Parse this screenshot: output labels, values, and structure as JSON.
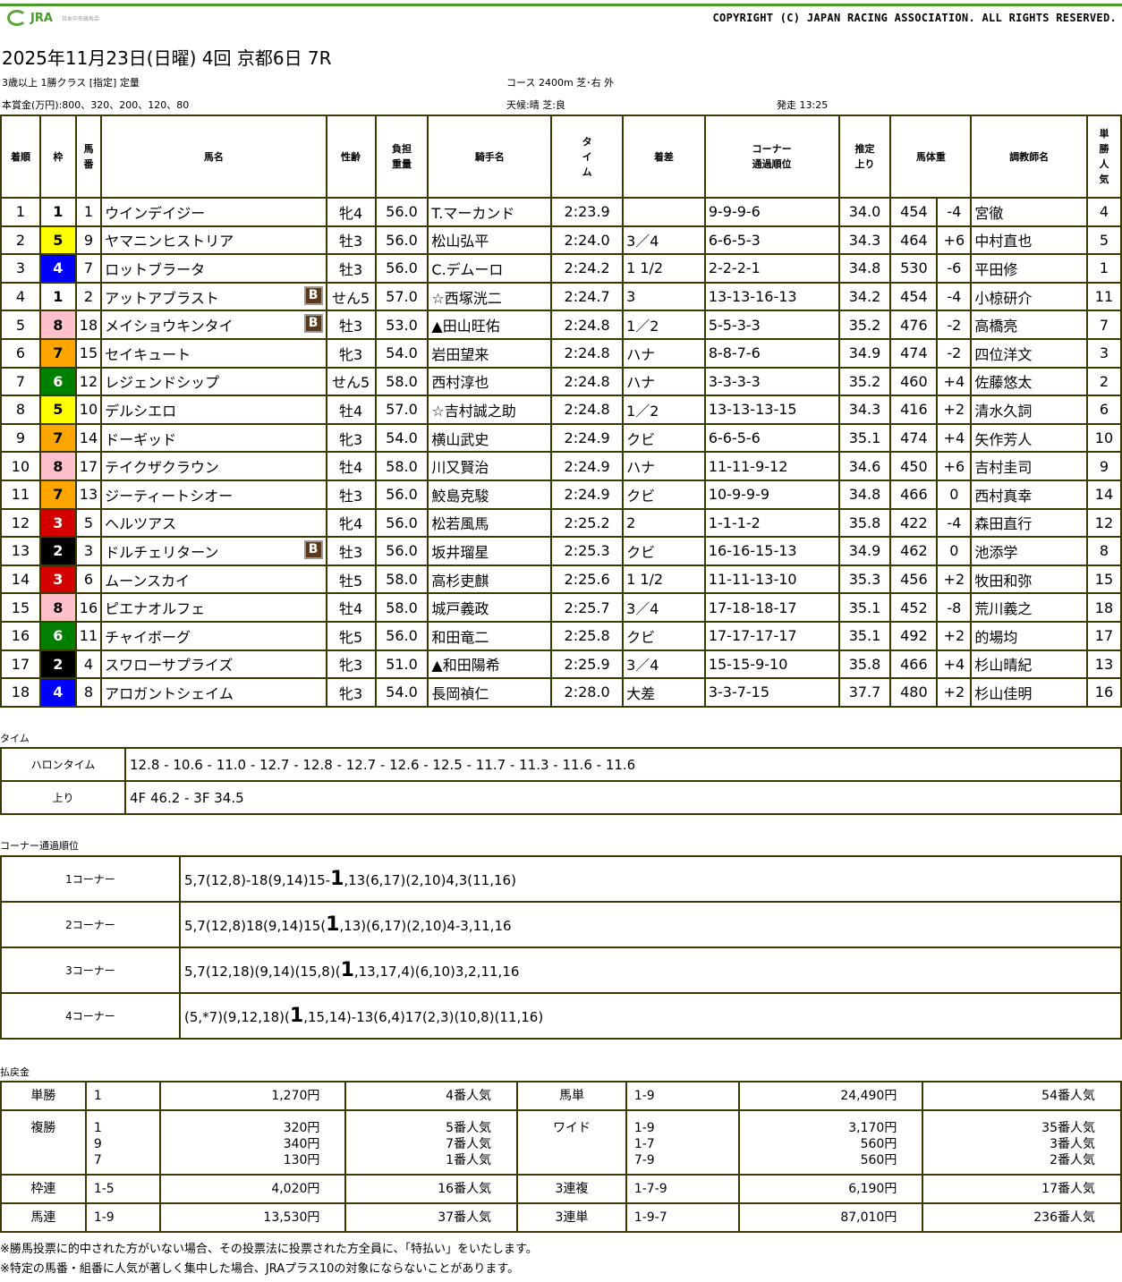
{
  "header": {
    "logo_text": "JRA",
    "logo_subtext": "日本中央競馬会",
    "copyright": "COPYRIGHT (C) JAPAN RACING ASSOCIATION. ALL RIGHTS RESERVED.",
    "title": "2025年11月23日(日曜) 4回 京都6日 7R",
    "race_class": "3歳以上 1勝クラス [指定] 定量",
    "course": "コース 2400m 芝･右 外",
    "prize": "本賞金(万円):800、320、200、120、80",
    "weather": "天候:晴 芝:良",
    "start": "発走 13:25"
  },
  "colors": {
    "border": "#3a3a00",
    "brand": "#4a9a2a",
    "blinker": "#5a3a1a"
  },
  "waku_colors": {
    "1": [
      "#ffffff",
      "#000000"
    ],
    "2": [
      "#000000",
      "#ffffff"
    ],
    "3": [
      "#d40000",
      "#ffffff"
    ],
    "4": [
      "#0000ff",
      "#ffffff"
    ],
    "5": [
      "#ffff00",
      "#000000"
    ],
    "6": [
      "#008000",
      "#ffffff"
    ],
    "7": [
      "#ffa500",
      "#000000"
    ],
    "8": [
      "#ffc0cb",
      "#000000"
    ]
  },
  "columns": [
    "着順",
    "枠",
    "馬\n番",
    "馬名",
    "性齢",
    "負担\n重量",
    "騎手名",
    "タ\nイ\nム",
    "着差",
    "コーナー\n通過順位",
    "推定\n上り",
    "馬体重",
    "調教師名",
    "単\n勝\n人\n気"
  ],
  "blinker_label": "B",
  "results": [
    [
      "1",
      "1",
      "1",
      "ウインデイジー",
      false,
      "牝4",
      "56.0",
      "T.マーカンド",
      "2:23.9",
      "",
      "9-9-9-6",
      "34.0",
      "454",
      "-4",
      "宮徹",
      "4"
    ],
    [
      "2",
      "5",
      "9",
      "ヤマニンヒストリア",
      false,
      "牡3",
      "56.0",
      "松山弘平",
      "2:24.0",
      "3／4",
      "6-6-5-3",
      "34.3",
      "464",
      "+6",
      "中村直也",
      "5"
    ],
    [
      "3",
      "4",
      "7",
      "ロットブラータ",
      false,
      "牡3",
      "56.0",
      "C.デムーロ",
      "2:24.2",
      "1 1/2",
      "2-2-2-1",
      "34.8",
      "530",
      "-6",
      "平田修",
      "1"
    ],
    [
      "4",
      "1",
      "2",
      "アットアブラスト",
      true,
      "せん5",
      "57.0",
      "☆西塚洸二",
      "2:24.7",
      "3",
      "13-13-16-13",
      "34.2",
      "454",
      "-4",
      "小椋研介",
      "11"
    ],
    [
      "5",
      "8",
      "18",
      "メイショウキンタイ",
      true,
      "牡3",
      "53.0",
      "▲田山旺佑",
      "2:24.8",
      "1／2",
      "5-5-3-3",
      "35.2",
      "476",
      "-2",
      "高橋亮",
      "7"
    ],
    [
      "6",
      "7",
      "15",
      "セイキュート",
      false,
      "牝3",
      "54.0",
      "岩田望来",
      "2:24.8",
      "ハナ",
      "8-8-7-6",
      "34.9",
      "474",
      "-2",
      "四位洋文",
      "3"
    ],
    [
      "7",
      "6",
      "12",
      "レジェンドシップ",
      false,
      "せん5",
      "58.0",
      "西村淳也",
      "2:24.8",
      "ハナ",
      "3-3-3-3",
      "35.2",
      "460",
      "+4",
      "佐藤悠太",
      "2"
    ],
    [
      "8",
      "5",
      "10",
      "デルシエロ",
      false,
      "牡4",
      "57.0",
      "☆吉村誠之助",
      "2:24.8",
      "1／2",
      "13-13-13-15",
      "34.3",
      "416",
      "+2",
      "清水久詞",
      "6"
    ],
    [
      "9",
      "7",
      "14",
      "ドーギッド",
      false,
      "牝3",
      "54.0",
      "横山武史",
      "2:24.9",
      "クビ",
      "6-6-5-6",
      "35.1",
      "474",
      "+4",
      "矢作芳人",
      "10"
    ],
    [
      "10",
      "8",
      "17",
      "テイクザクラウン",
      false,
      "牡4",
      "58.0",
      "川又賢治",
      "2:24.9",
      "ハナ",
      "11-11-9-12",
      "34.6",
      "450",
      "+6",
      "吉村圭司",
      "9"
    ],
    [
      "11",
      "7",
      "13",
      "ジーティートシオー",
      false,
      "牡3",
      "56.0",
      "鮫島克駿",
      "2:24.9",
      "クビ",
      "10-9-9-9",
      "34.8",
      "466",
      "0",
      "西村真幸",
      "14"
    ],
    [
      "12",
      "3",
      "5",
      "ヘルツアス",
      false,
      "牝4",
      "56.0",
      "松若風馬",
      "2:25.2",
      "2",
      "1-1-1-2",
      "35.8",
      "422",
      "-4",
      "森田直行",
      "12"
    ],
    [
      "13",
      "2",
      "3",
      "ドルチェリターン",
      true,
      "牡3",
      "56.0",
      "坂井瑠星",
      "2:25.3",
      "クビ",
      "16-16-15-13",
      "34.9",
      "462",
      "0",
      "池添学",
      "8"
    ],
    [
      "14",
      "3",
      "6",
      "ムーンスカイ",
      false,
      "牡5",
      "58.0",
      "高杉吏麒",
      "2:25.6",
      "1 1/2",
      "11-11-13-10",
      "35.3",
      "456",
      "+2",
      "牧田和弥",
      "15"
    ],
    [
      "15",
      "8",
      "16",
      "ピエナオルフェ",
      false,
      "牡4",
      "58.0",
      "城戸義政",
      "2:25.7",
      "3／4",
      "17-18-18-17",
      "35.1",
      "452",
      "-8",
      "荒川義之",
      "18"
    ],
    [
      "16",
      "6",
      "11",
      "チャイボーグ",
      false,
      "牝5",
      "56.0",
      "和田竜二",
      "2:25.8",
      "クビ",
      "17-17-17-17",
      "35.1",
      "492",
      "+2",
      "的場均",
      "17"
    ],
    [
      "17",
      "2",
      "4",
      "スワローサプライズ",
      false,
      "牝3",
      "51.0",
      "▲和田陽希",
      "2:25.9",
      "3／4",
      "15-15-9-10",
      "35.8",
      "466",
      "+4",
      "杉山晴紀",
      "13"
    ],
    [
      "18",
      "4",
      "8",
      "アロガントシェイム",
      false,
      "牝3",
      "54.0",
      "長岡禎仁",
      "2:28.0",
      "大差",
      "3-3-7-15",
      "37.7",
      "480",
      "+2",
      "杉山佳明",
      "16"
    ]
  ],
  "times": {
    "section_label": "タイム",
    "rows": [
      {
        "label": "ハロンタイム",
        "value": "12.8 - 10.6 - 11.0 - 12.7 - 12.8 - 12.7 - 12.6 - 12.5 - 11.7 - 11.3 - 11.6 - 11.6"
      },
      {
        "label": "上り",
        "value": "4F 46.2 - 3F 34.5"
      }
    ]
  },
  "corners": {
    "section_label": "コーナー通過順位",
    "rows": [
      {
        "label": "1コーナー",
        "before": "5,7(12,8)-18(9,14)15-",
        "winner": "1",
        "after": ",13(6,17)(2,10)4,3(11,16)"
      },
      {
        "label": "2コーナー",
        "before": "5,7(12,8)18(9,14)15(",
        "winner": "1",
        "after": ",13)(6,17)(2,10)4-3,11,16"
      },
      {
        "label": "3コーナー",
        "before": "5,7(12,18)(9,14)(15,8)(",
        "winner": "1",
        "after": ",13,17,4)(6,10)3,2,11,16"
      },
      {
        "label": "4コーナー",
        "before": "(5,*7)(9,12,18)(",
        "winner": "1",
        "after": ",15,14)-13(6,4)17(2,3)(10,8)(11,16)"
      }
    ]
  },
  "payout": {
    "section_label": "払戻金",
    "rows": [
      [
        {
          "type": "単勝",
          "nums": [
            "1"
          ],
          "pay": [
            "1,270円"
          ],
          "pop": [
            "4番人気"
          ]
        },
        {
          "type": "馬単",
          "nums": [
            "1-9"
          ],
          "pay": [
            "24,490円"
          ],
          "pop": [
            "54番人気"
          ]
        }
      ],
      [
        {
          "type": "複勝",
          "nums": [
            "1",
            "9",
            "7"
          ],
          "pay": [
            "320円",
            "340円",
            "130円"
          ],
          "pop": [
            "5番人気",
            "7番人気",
            "1番人気"
          ]
        },
        {
          "type": "ワイド",
          "nums": [
            "1-9",
            "1-7",
            "7-9"
          ],
          "pay": [
            "3,170円",
            "560円",
            "560円"
          ],
          "pop": [
            "35番人気",
            "3番人気",
            "2番人気"
          ]
        }
      ],
      [
        {
          "type": "枠連",
          "nums": [
            "1-5"
          ],
          "pay": [
            "4,020円"
          ],
          "pop": [
            "16番人気"
          ]
        },
        {
          "type": "3連複",
          "nums": [
            "1-7-9"
          ],
          "pay": [
            "6,190円"
          ],
          "pop": [
            "17番人気"
          ]
        }
      ],
      [
        {
          "type": "馬連",
          "nums": [
            "1-9"
          ],
          "pay": [
            "13,530円"
          ],
          "pop": [
            "37番人気"
          ]
        },
        {
          "type": "3連単",
          "nums": [
            "1-9-7"
          ],
          "pay": [
            "87,010円"
          ],
          "pop": [
            "236番人気"
          ]
        }
      ]
    ]
  },
  "notes": [
    "※勝馬投票に的中された方がいない場合、その投票法に投票された方全員に、「特払い」をいたします。",
    "※特定の馬番・組番に人気が著しく集中した場合、JRAプラス10の対象にならないことがあります。"
  ]
}
